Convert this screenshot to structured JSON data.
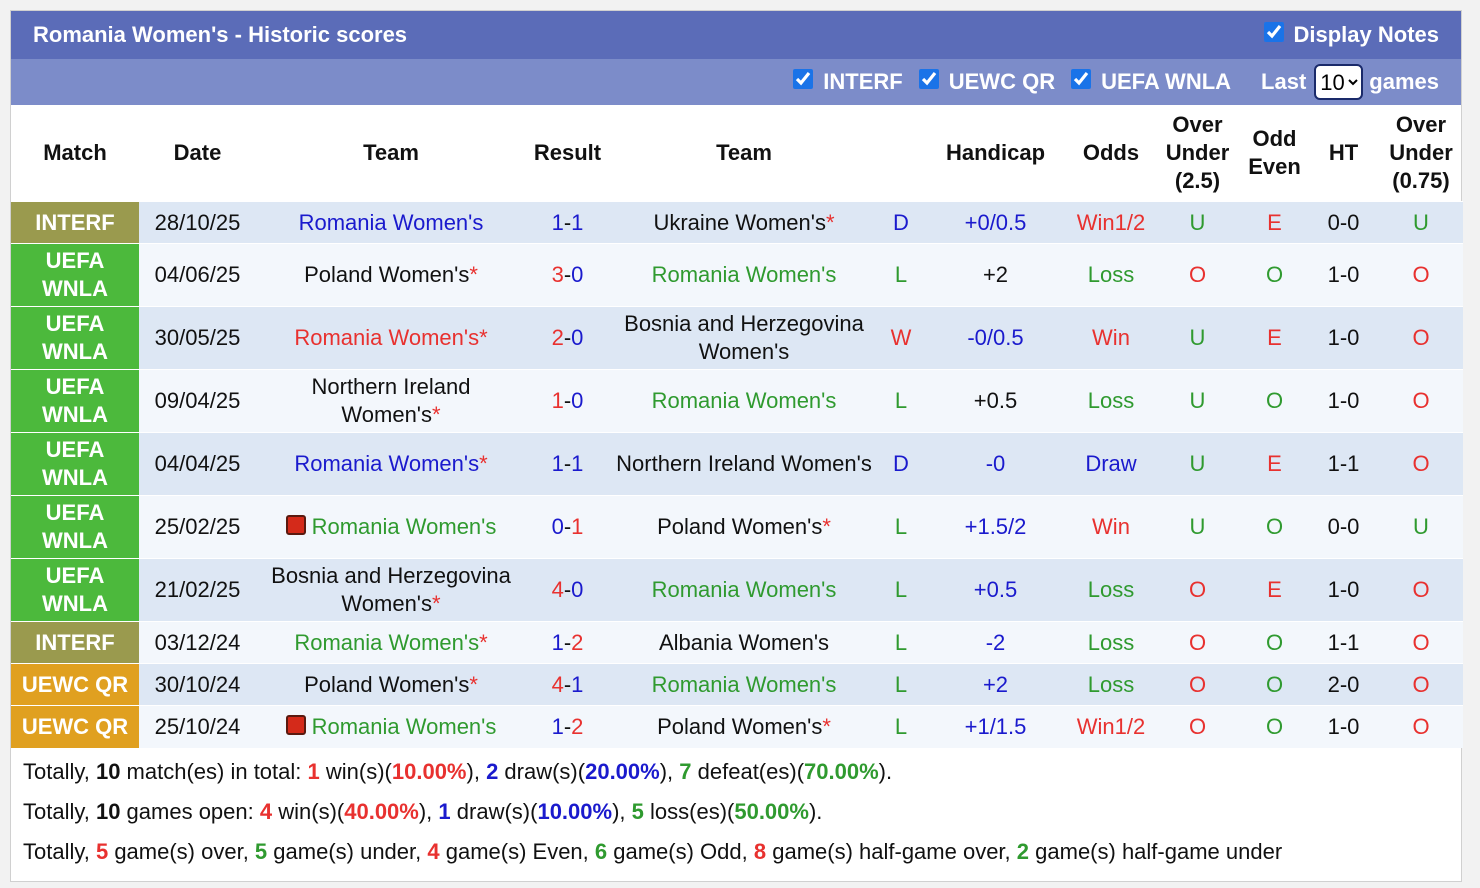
{
  "header": {
    "title": "Romania Women's - Historic scores",
    "display_notes": {
      "label": "Display Notes",
      "checked": true
    }
  },
  "filters": [
    {
      "label": "INTERF",
      "checked": true
    },
    {
      "label": "UEWC QR",
      "checked": true
    },
    {
      "label": "UEFA WNLA",
      "checked": true
    }
  ],
  "last": {
    "label": "Last",
    "value": "10",
    "suffix": "games"
  },
  "table": {
    "columns": [
      "Match",
      "Date",
      "Team",
      "Result",
      "Team",
      "Handicap",
      "Odds",
      "Over Under (2.5)",
      "Odd Even",
      "HT",
      "Over Under (0.75)"
    ],
    "rows": [
      {
        "match": {
          "text": "INTERF",
          "color": "#9a9a4e"
        },
        "date": "28/10/25",
        "home": {
          "text": "Romania Women's",
          "color": "#1a1acd"
        },
        "score": [
          1,
          1
        ],
        "away": {
          "text": "Ukraine Women's",
          "color": "#111111",
          "mark": "*"
        },
        "outcome": {
          "text": "D",
          "color": "#1a1acd"
        },
        "handicap": {
          "text": "+0/0.5",
          "color": "#1a1acd"
        },
        "odds": {
          "text": "Win1/2",
          "color": "#e8312f"
        },
        "ou": {
          "text": "U",
          "color": "#2f9a2f"
        },
        "oe": {
          "text": "E",
          "color": "#e8312f"
        },
        "ht": "0-0",
        "ou2": {
          "text": "U",
          "color": "#2f9a2f"
        }
      },
      {
        "match": {
          "text": "UEFA WNLA",
          "color": "#4cb93c"
        },
        "date": "04/06/25",
        "home": {
          "text": "Poland Women's",
          "color": "#111111",
          "mark": "*"
        },
        "score": [
          3,
          0
        ],
        "away": {
          "text": "Romania Women's",
          "color": "#2f9a2f"
        },
        "outcome": {
          "text": "L",
          "color": "#2f9a2f"
        },
        "handicap": {
          "text": "+2",
          "color": "#111111"
        },
        "odds": {
          "text": "Loss",
          "color": "#2f9a2f"
        },
        "ou": {
          "text": "O",
          "color": "#e8312f"
        },
        "oe": {
          "text": "O",
          "color": "#2f9a2f"
        },
        "ht": "1-0",
        "ou2": {
          "text": "O",
          "color": "#e8312f"
        }
      },
      {
        "match": {
          "text": "UEFA WNLA",
          "color": "#4cb93c"
        },
        "date": "30/05/25",
        "home": {
          "text": "Romania Women's",
          "color": "#e8312f",
          "mark": "*"
        },
        "score": [
          2,
          0
        ],
        "away": {
          "text": "Bosnia and Herzegovina Women's",
          "color": "#111111"
        },
        "outcome": {
          "text": "W",
          "color": "#e8312f"
        },
        "handicap": {
          "text": "-0/0.5",
          "color": "#1a1acd"
        },
        "odds": {
          "text": "Win",
          "color": "#e8312f"
        },
        "ou": {
          "text": "U",
          "color": "#2f9a2f"
        },
        "oe": {
          "text": "E",
          "color": "#e8312f"
        },
        "ht": "1-0",
        "ou2": {
          "text": "O",
          "color": "#e8312f"
        }
      },
      {
        "match": {
          "text": "UEFA WNLA",
          "color": "#4cb93c"
        },
        "date": "09/04/25",
        "home": {
          "text": "Northern Ireland Women's",
          "color": "#111111",
          "mark": "*"
        },
        "score": [
          1,
          0
        ],
        "away": {
          "text": "Romania Women's",
          "color": "#2f9a2f"
        },
        "outcome": {
          "text": "L",
          "color": "#2f9a2f"
        },
        "handicap": {
          "text": "+0.5",
          "color": "#111111"
        },
        "odds": {
          "text": "Loss",
          "color": "#2f9a2f"
        },
        "ou": {
          "text": "U",
          "color": "#2f9a2f"
        },
        "oe": {
          "text": "O",
          "color": "#2f9a2f"
        },
        "ht": "1-0",
        "ou2": {
          "text": "O",
          "color": "#e8312f"
        }
      },
      {
        "match": {
          "text": "UEFA WNLA",
          "color": "#4cb93c"
        },
        "date": "04/04/25",
        "home": {
          "text": "Romania Women's",
          "color": "#1a1acd",
          "mark": "*"
        },
        "score": [
          1,
          1
        ],
        "away": {
          "text": "Northern Ireland Women's",
          "color": "#111111"
        },
        "outcome": {
          "text": "D",
          "color": "#1a1acd"
        },
        "handicap": {
          "text": "-0",
          "color": "#1a1acd"
        },
        "odds": {
          "text": "Draw",
          "color": "#1a1acd"
        },
        "ou": {
          "text": "U",
          "color": "#2f9a2f"
        },
        "oe": {
          "text": "E",
          "color": "#e8312f"
        },
        "ht": "1-1",
        "ou2": {
          "text": "O",
          "color": "#e8312f"
        }
      },
      {
        "match": {
          "text": "UEFA WNLA",
          "color": "#4cb93c"
        },
        "date": "25/02/25",
        "home": {
          "text": "Romania Women's",
          "color": "#2f9a2f",
          "card": true
        },
        "score": [
          0,
          1
        ],
        "away": {
          "text": "Poland Women's",
          "color": "#111111",
          "mark": "*"
        },
        "outcome": {
          "text": "L",
          "color": "#2f9a2f"
        },
        "handicap": {
          "text": "+1.5/2",
          "color": "#1a1acd"
        },
        "odds": {
          "text": "Win",
          "color": "#e8312f"
        },
        "ou": {
          "text": "U",
          "color": "#2f9a2f"
        },
        "oe": {
          "text": "O",
          "color": "#2f9a2f"
        },
        "ht": "0-0",
        "ou2": {
          "text": "U",
          "color": "#2f9a2f"
        }
      },
      {
        "match": {
          "text": "UEFA WNLA",
          "color": "#4cb93c"
        },
        "date": "21/02/25",
        "home": {
          "text": "Bosnia and Herzegovina Women's",
          "color": "#111111",
          "mark": "*"
        },
        "score": [
          4,
          0
        ],
        "away": {
          "text": "Romania Women's",
          "color": "#2f9a2f"
        },
        "outcome": {
          "text": "L",
          "color": "#2f9a2f"
        },
        "handicap": {
          "text": "+0.5",
          "color": "#1a1acd"
        },
        "odds": {
          "text": "Loss",
          "color": "#2f9a2f"
        },
        "ou": {
          "text": "O",
          "color": "#e8312f"
        },
        "oe": {
          "text": "E",
          "color": "#e8312f"
        },
        "ht": "1-0",
        "ou2": {
          "text": "O",
          "color": "#e8312f"
        }
      },
      {
        "match": {
          "text": "INTERF",
          "color": "#9a9a4e"
        },
        "date": "03/12/24",
        "home": {
          "text": "Romania Women's",
          "color": "#2f9a2f",
          "mark": "*"
        },
        "score": [
          1,
          2
        ],
        "away": {
          "text": "Albania Women's",
          "color": "#111111"
        },
        "outcome": {
          "text": "L",
          "color": "#2f9a2f"
        },
        "handicap": {
          "text": "-2",
          "color": "#1a1acd"
        },
        "odds": {
          "text": "Loss",
          "color": "#2f9a2f"
        },
        "ou": {
          "text": "O",
          "color": "#e8312f"
        },
        "oe": {
          "text": "O",
          "color": "#2f9a2f"
        },
        "ht": "1-1",
        "ou2": {
          "text": "O",
          "color": "#e8312f"
        }
      },
      {
        "match": {
          "text": "UEWC QR",
          "color": "#e0a020"
        },
        "date": "30/10/24",
        "home": {
          "text": "Poland Women's",
          "color": "#111111",
          "mark": "*"
        },
        "score": [
          4,
          1
        ],
        "away": {
          "text": "Romania Women's",
          "color": "#2f9a2f"
        },
        "outcome": {
          "text": "L",
          "color": "#2f9a2f"
        },
        "handicap": {
          "text": "+2",
          "color": "#1a1acd"
        },
        "odds": {
          "text": "Loss",
          "color": "#2f9a2f"
        },
        "ou": {
          "text": "O",
          "color": "#e8312f"
        },
        "oe": {
          "text": "O",
          "color": "#2f9a2f"
        },
        "ht": "2-0",
        "ou2": {
          "text": "O",
          "color": "#e8312f"
        }
      },
      {
        "match": {
          "text": "UEWC QR",
          "color": "#e0a020"
        },
        "date": "25/10/24",
        "home": {
          "text": "Romania Women's",
          "color": "#2f9a2f",
          "card": true
        },
        "score": [
          1,
          2
        ],
        "away": {
          "text": "Poland Women's",
          "color": "#111111",
          "mark": "*"
        },
        "outcome": {
          "text": "L",
          "color": "#2f9a2f"
        },
        "handicap": {
          "text": "+1/1.5",
          "color": "#1a1acd"
        },
        "odds": {
          "text": "Win1/2",
          "color": "#e8312f"
        },
        "ou": {
          "text": "O",
          "color": "#e8312f"
        },
        "oe": {
          "text": "O",
          "color": "#2f9a2f"
        },
        "ht": "1-0",
        "ou2": {
          "text": "O",
          "color": "#e8312f"
        }
      }
    ]
  },
  "summary": [
    [
      {
        "text": "Totally, "
      },
      {
        "text": "10",
        "color": "#111111"
      },
      {
        "text": " match(es) in total: "
      },
      {
        "text": "1",
        "color": "#e8312f"
      },
      {
        "text": " win(s)("
      },
      {
        "text": "10.00%",
        "color": "#e8312f"
      },
      {
        "text": "), "
      },
      {
        "text": "2",
        "color": "#1a1acd"
      },
      {
        "text": " draw(s)("
      },
      {
        "text": "20.00%",
        "color": "#1a1acd"
      },
      {
        "text": "), "
      },
      {
        "text": "7",
        "color": "#2f9a2f"
      },
      {
        "text": " defeat(es)("
      },
      {
        "text": "70.00%",
        "color": "#2f9a2f"
      },
      {
        "text": ")."
      }
    ],
    [
      {
        "text": "Totally, "
      },
      {
        "text": "10",
        "color": "#111111"
      },
      {
        "text": " games open: "
      },
      {
        "text": "4",
        "color": "#e8312f"
      },
      {
        "text": " win(s)("
      },
      {
        "text": "40.00%",
        "color": "#e8312f"
      },
      {
        "text": "), "
      },
      {
        "text": "1",
        "color": "#1a1acd"
      },
      {
        "text": " draw(s)("
      },
      {
        "text": "10.00%",
        "color": "#1a1acd"
      },
      {
        "text": "), "
      },
      {
        "text": "5",
        "color": "#2f9a2f"
      },
      {
        "text": " loss(es)("
      },
      {
        "text": "50.00%",
        "color": "#2f9a2f"
      },
      {
        "text": ")."
      }
    ],
    [
      {
        "text": "Totally, "
      },
      {
        "text": "5",
        "color": "#e8312f"
      },
      {
        "text": " game(s) over, "
      },
      {
        "text": "5",
        "color": "#2f9a2f"
      },
      {
        "text": " game(s) under, "
      },
      {
        "text": "4",
        "color": "#e8312f"
      },
      {
        "text": " game(s) Even, "
      },
      {
        "text": "6",
        "color": "#2f9a2f"
      },
      {
        "text": " game(s) Odd, "
      },
      {
        "text": "8",
        "color": "#e8312f"
      },
      {
        "text": " game(s) half-game over, "
      },
      {
        "text": "2",
        "color": "#2f9a2f"
      },
      {
        "text": " game(s) half-game under"
      }
    ]
  ]
}
